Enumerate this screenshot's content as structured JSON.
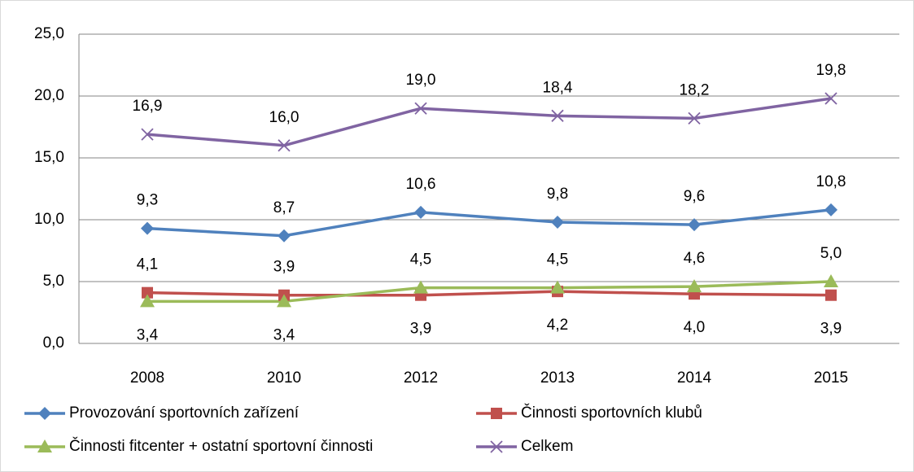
{
  "chart_data": {
    "type": "line",
    "categories": [
      "2008",
      "2010",
      "2012",
      "2013",
      "2014",
      "2015"
    ],
    "series": [
      {
        "name": "Provozování sportovních zařízení",
        "color": "#4f81bd",
        "marker": "diamond",
        "values": [
          9.3,
          8.7,
          10.6,
          9.8,
          9.6,
          10.8
        ],
        "value_labels": [
          "9,3",
          "8,7",
          "10,6",
          "9,8",
          "9,6",
          "10,8"
        ]
      },
      {
        "name": "Činnosti sportovních klubů",
        "color": "#c0504d",
        "marker": "square",
        "values": [
          4.1,
          3.9,
          3.9,
          4.2,
          4.0,
          3.9
        ],
        "value_labels": [
          "4,1",
          "3,9",
          "3,9",
          "4,2",
          "4,0",
          "3,9"
        ]
      },
      {
        "name": "Činnosti fitcenter + ostatní sportovní činnosti",
        "color": "#9bbb59",
        "marker": "triangle",
        "values": [
          3.4,
          3.4,
          4.5,
          4.5,
          4.6,
          5.0
        ],
        "value_labels": [
          "3,4",
          "3,4",
          "4,5",
          "4,5",
          "4,6",
          "5,0"
        ]
      },
      {
        "name": "Celkem",
        "color": "#8064a2",
        "marker": "x",
        "values": [
          16.9,
          16.0,
          19.0,
          18.4,
          18.2,
          19.8
        ],
        "value_labels": [
          "16,9",
          "16,0",
          "19,0",
          "18,4",
          "18,2",
          "19,8"
        ]
      }
    ],
    "ylim": [
      0,
      25
    ],
    "yticks": [
      {
        "value": 0,
        "label": "0,0"
      },
      {
        "value": 5,
        "label": "5,0"
      },
      {
        "value": 10,
        "label": "10,0"
      },
      {
        "value": 15,
        "label": "15,0"
      },
      {
        "value": 20,
        "label": "20,0"
      },
      {
        "value": 25,
        "label": "25,0"
      }
    ],
    "grid": true,
    "legend": "bottom"
  }
}
